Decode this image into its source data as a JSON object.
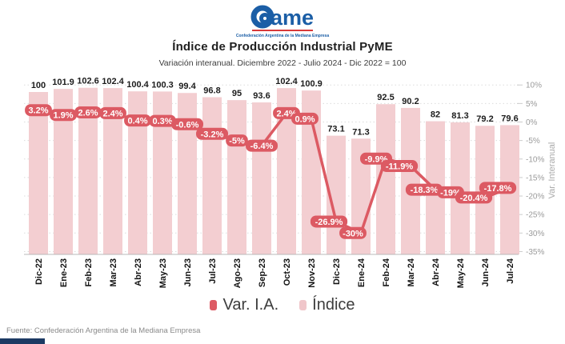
{
  "header": {
    "logo_text": "ame",
    "logo_subtext": "Confederación Argentina de la Mediana Empresa",
    "title": "Índice de Producción Industrial PyME",
    "subtitle": "Variación interanual. Diciembre 2022 - Julio 2024 - Dic 2022 = 100"
  },
  "chart_data": {
    "type": "bar",
    "title": "Índice de Producción Industrial PyME",
    "subtitle": "Variación interanual. Diciembre 2022 - Julio 2024 - Dic 2022 = 100",
    "categories": [
      "Dic-22",
      "Ene-23",
      "Feb-23",
      "Mar-23",
      "Abr-23",
      "May-23",
      "Jun-23",
      "Jul-23",
      "Ago-23",
      "Sep-23",
      "Oct-23",
      "Nov-23",
      "Dic-23",
      "Ene-24",
      "Feb-24",
      "Mar-24",
      "Abr-24",
      "May-24",
      "Jun-24",
      "Jul-24"
    ],
    "series": [
      {
        "name": "Var. I.A.",
        "type": "line",
        "unit": "%",
        "values": [
          3.2,
          1.9,
          2.6,
          2.4,
          0.4,
          0.3,
          -0.6,
          -3.2,
          -5,
          -6.4,
          2.4,
          0.9,
          -26.9,
          -30,
          -9.9,
          -11.9,
          -18.3,
          -19,
          -20.4,
          -17.8
        ],
        "labels": [
          "3.2%",
          "1.9%",
          "2.6%",
          "2.4%",
          "0.4%",
          "0.3%",
          "-0.6%",
          "-3.2%",
          "-5%",
          "-6.4%",
          "2.4%",
          "0.9%",
          "-26.9%",
          "-30%",
          "-9.9%",
          "-11.9%",
          "-18.3%",
          "-19%",
          "-20.4%",
          "-17.8%"
        ]
      },
      {
        "name": "Índice",
        "type": "bar",
        "values": [
          100,
          101.9,
          102.6,
          102.4,
          100.4,
          100.3,
          99.4,
          96.8,
          95,
          93.6,
          102.4,
          100.9,
          73.1,
          71.3,
          92.5,
          90.2,
          82,
          81.3,
          79.2,
          79.6
        ],
        "labels": [
          "100",
          "101.9",
          "102.6",
          "102.4",
          "100.4",
          "100.3",
          "99.4",
          "96.8",
          "95",
          "93.6",
          "102.4",
          "100.9",
          "73.1",
          "71.3",
          "92.5",
          "90.2",
          "82",
          "81.3",
          "79.2",
          "79.6"
        ]
      }
    ],
    "y_axis_right": {
      "label": "Var. Interanual",
      "ticks": [
        "10%",
        "5%",
        "0%",
        "-5%",
        "-10%",
        "-15%",
        "-20%",
        "-25%",
        "-30%",
        "-35%"
      ],
      "min": -35,
      "max": 10
    },
    "grid": "dotted-horizontal",
    "legend_position": "bottom",
    "colors": {
      "bar": "#f3ced1",
      "line": "#dc5a63",
      "label_text": "#ffffff",
      "bar_label": "#1c1c1c"
    }
  },
  "legend": [
    {
      "label": "Var. I.A.",
      "color": "#dd5b64"
    },
    {
      "label": "Índice",
      "color": "#f0c6ca"
    }
  ],
  "footer": {
    "source": "Fuente: Confederación Argentina de la Mediana Empresa"
  }
}
